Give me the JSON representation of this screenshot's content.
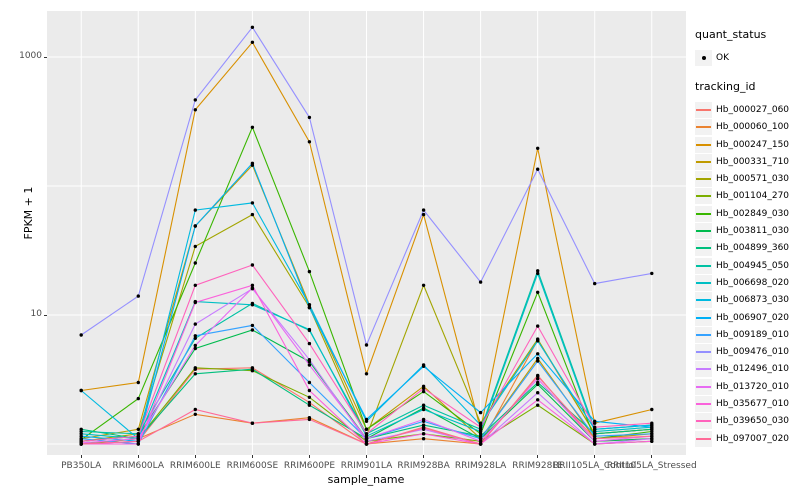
{
  "chart_data": {
    "type": "line",
    "title": "",
    "xlabel": "sample_name",
    "ylabel": "FPKM + 1",
    "y_scale": "log10",
    "ylim": [
      0.82,
      2300
    ],
    "grid": true,
    "panel_background": "#EBEBEB",
    "gridline_color": "#FFFFFF",
    "point_color": "#000000",
    "y_axis_ticks": [
      {
        "label": "1000",
        "value": 1000
      },
      {
        "label": "10",
        "value": 10
      }
    ],
    "y_gridline_values": [
      1,
      10,
      100,
      1000
    ],
    "categories": [
      "PB350LA",
      "RRIM600LA",
      "RRIM600LE",
      "RRIM600SE",
      "RRIM600PE",
      "RRIM901LA",
      "RRIM928BA",
      "RRIM928LA",
      "RRIM928LE",
      "RRII105LA_Control",
      "RRII105LA_Stressed"
    ],
    "series": [
      {
        "name": "Hb_000027_060",
        "color": "#F8766D",
        "values": [
          1.0,
          1.05,
          3.8,
          3.9,
          2.1,
          1.0,
          1.35,
          1.0,
          3.4,
          1.05,
          1.1
        ]
      },
      {
        "name": "Hb_000060_100",
        "color": "#EA8331",
        "values": [
          1.0,
          1.1,
          1.7,
          1.45,
          1.6,
          1.0,
          1.1,
          1.0,
          6.4,
          1.2,
          1.3
        ]
      },
      {
        "name": "Hb_000247_150",
        "color": "#D89000",
        "values": [
          2.6,
          3.0,
          390,
          1300,
          220,
          3.5,
          60,
          1.3,
          196,
          1.45,
          1.85
        ]
      },
      {
        "name": "Hb_000331_710",
        "color": "#C09B00",
        "values": [
          1.1,
          1.3,
          49,
          145,
          12,
          1.3,
          2.8,
          1.1,
          4.6,
          1.1,
          1.2
        ]
      },
      {
        "name": "Hb_000571_030",
        "color": "#A3A500",
        "values": [
          1.05,
          1.2,
          34,
          60,
          11.5,
          1.15,
          17,
          1.45,
          6.5,
          1.2,
          1.3
        ]
      },
      {
        "name": "Hb_001104_270",
        "color": "#7CAE00",
        "values": [
          1.0,
          1.1,
          3.9,
          3.7,
          2.3,
          1.05,
          1.2,
          1.05,
          2.0,
          1.0,
          1.05
        ]
      },
      {
        "name": "Hb_002849_030",
        "color": "#39B600",
        "values": [
          1.08,
          2.25,
          25.3,
          285,
          21.7,
          1.3,
          2.55,
          1.2,
          15,
          1.1,
          1.25
        ]
      },
      {
        "name": "Hb_003811_030",
        "color": "#00BB4E",
        "values": [
          1.05,
          1.15,
          5.5,
          7.65,
          4.35,
          1.1,
          1.9,
          1.1,
          2.9,
          1.05,
          1.1
        ]
      },
      {
        "name": "Hb_004899_360",
        "color": "#00BF7D",
        "values": [
          1.3,
          1.1,
          3.5,
          3.8,
          2.0,
          1.1,
          1.4,
          1.15,
          3.0,
          1.2,
          1.3
        ]
      },
      {
        "name": "Hb_004945_050",
        "color": "#00C1A3",
        "values": [
          1.25,
          1.2,
          6.6,
          12.3,
          7.6,
          1.2,
          2.0,
          1.3,
          22,
          1.3,
          1.4
        ]
      },
      {
        "name": "Hb_006698_020",
        "color": "#00BFC4",
        "values": [
          1.2,
          1.1,
          12.7,
          12.0,
          7.7,
          1.15,
          1.85,
          1.25,
          21,
          1.25,
          1.35
        ]
      },
      {
        "name": "Hb_006873_030",
        "color": "#00BAE0",
        "values": [
          2.6,
          1.1,
          65,
          74,
          12,
          1.5,
          4.1,
          1.4,
          6.3,
          1.3,
          1.4
        ]
      },
      {
        "name": "Hb_006907_020",
        "color": "#00B0F6",
        "values": [
          1.15,
          1.05,
          49,
          150,
          11.4,
          1.55,
          4.0,
          1.75,
          5.0,
          1.5,
          1.35
        ]
      },
      {
        "name": "Hb_009189_010",
        "color": "#35A2FF",
        "values": [
          1.1,
          1.0,
          6.9,
          8.3,
          3.0,
          1.1,
          1.5,
          1.1,
          4.4,
          1.15,
          1.2
        ]
      },
      {
        "name": "Hb_009476_010",
        "color": "#9590FF",
        "values": [
          7.0,
          14,
          465,
          1700,
          340,
          5.85,
          65,
          18,
          135,
          17.5,
          21
        ]
      },
      {
        "name": "Hb_012496_010",
        "color": "#C77CFF",
        "values": [
          1.0,
          1.05,
          8.5,
          16,
          4.5,
          1.05,
          1.3,
          1.0,
          2.5,
          1.0,
          1.1
        ]
      },
      {
        "name": "Hb_013720_010",
        "color": "#E76BF3",
        "values": [
          1.02,
          1.1,
          5.8,
          16.2,
          4.1,
          1.1,
          1.55,
          1.05,
          3.2,
          1.05,
          1.15
        ]
      },
      {
        "name": "Hb_035677_010",
        "color": "#FA62DB",
        "values": [
          1.0,
          1.0,
          12.5,
          17,
          2.6,
          1.0,
          1.2,
          1.0,
          2.2,
          1.0,
          1.05
        ]
      },
      {
        "name": "Hb_039650_030",
        "color": "#FF62BC",
        "values": [
          1.05,
          1.15,
          17,
          24.4,
          6.0,
          1.2,
          2.7,
          1.35,
          8.2,
          1.35,
          1.45
        ]
      },
      {
        "name": "Hb_097007_020",
        "color": "#FF6A98",
        "values": [
          1.0,
          1.05,
          1.85,
          1.45,
          1.55,
          1.0,
          1.33,
          1.0,
          3.35,
          1.1,
          1.15
        ]
      }
    ],
    "legend": {
      "quant_status_title": "quant_status",
      "quant_status_items": [
        {
          "label": "OK"
        }
      ],
      "tracking_id_title": "tracking_id",
      "position": "right"
    }
  }
}
